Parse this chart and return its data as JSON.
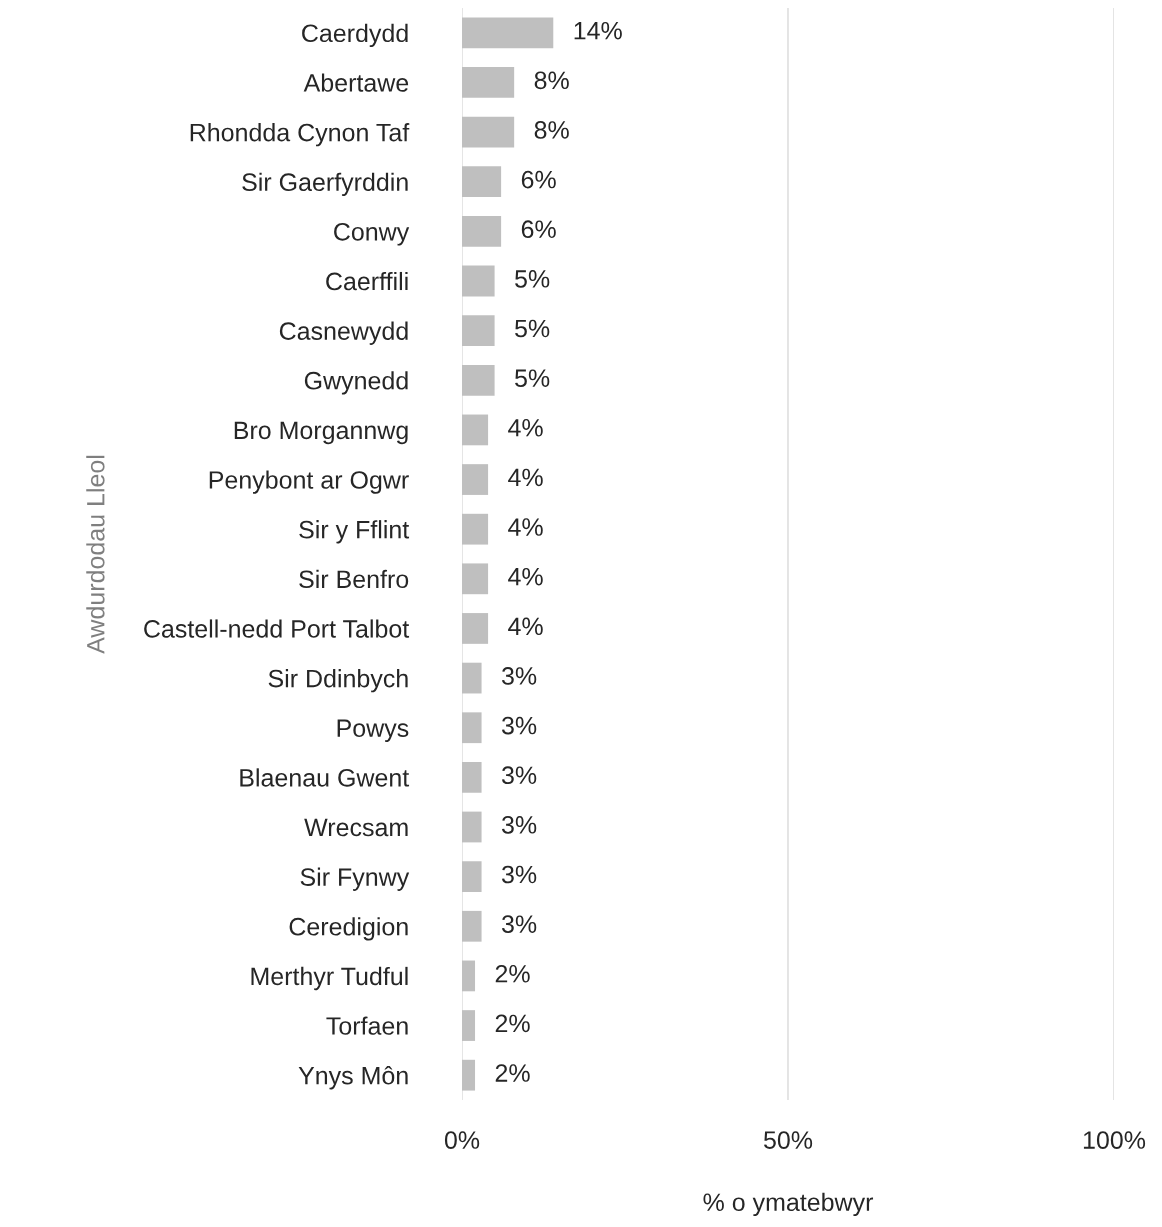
{
  "chart_data": {
    "type": "bar",
    "orientation": "horizontal",
    "xlabel": "% o ymatebwyr",
    "ylabel": "Awdurdodau Lleol",
    "categories": [
      "Caerdydd",
      "Abertawe",
      "Rhondda Cynon Taf",
      "Sir Gaerfyrddin",
      "Conwy",
      "Caerffili",
      "Casnewydd",
      "Gwynedd",
      "Bro Morgannwg",
      "Penybont ar Ogwr",
      "Sir y Fflint",
      "Sir Benfro",
      "Castell-nedd Port Talbot",
      "Sir Ddinbych",
      "Powys",
      "Blaenau Gwent",
      "Wrecsam",
      "Sir Fynwy",
      "Ceredigion",
      "Merthyr Tudful",
      "Torfaen",
      "Ynys Môn"
    ],
    "values": [
      14,
      8,
      8,
      6,
      6,
      5,
      5,
      5,
      4,
      4,
      4,
      4,
      4,
      3,
      3,
      3,
      3,
      3,
      3,
      2,
      2,
      2
    ],
    "value_labels": [
      "14%",
      "8%",
      "8%",
      "6%",
      "6%",
      "5%",
      "5%",
      "5%",
      "4%",
      "4%",
      "4%",
      "4%",
      "4%",
      "3%",
      "3%",
      "3%",
      "3%",
      "3%",
      "3%",
      "2%",
      "2%",
      "2%"
    ],
    "color": "#bfbfbf",
    "xlim": [
      0,
      100
    ],
    "xticks": [
      {
        "value": 0,
        "label": "0%"
      },
      {
        "value": 50,
        "label": "50%"
      },
      {
        "value": 100,
        "label": "100%"
      }
    ],
    "grid": "x",
    "legend": false
  }
}
